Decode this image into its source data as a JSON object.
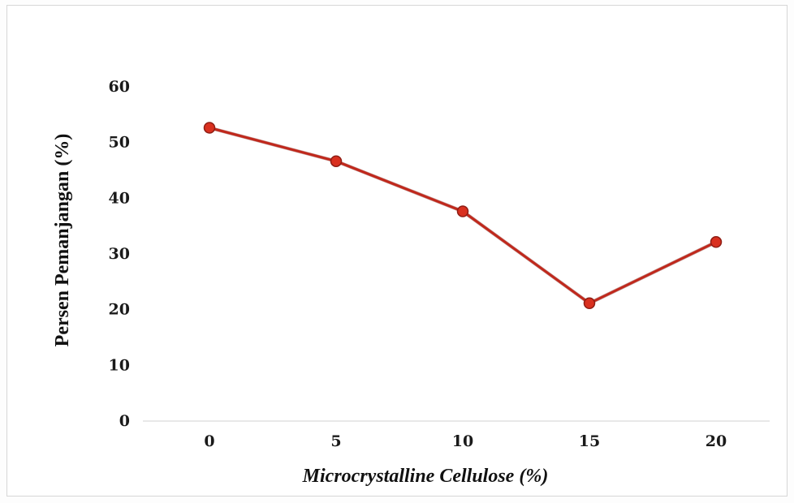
{
  "chart_data": {
    "type": "line",
    "title": "",
    "xlabel": "Microcrystalline Cellulose (%)",
    "ylabel": "Persen Pemanjangan (%)",
    "categories": [
      "0",
      "5",
      "10",
      "15",
      "20"
    ],
    "x": [
      0,
      5,
      10,
      15,
      20
    ],
    "series": [
      {
        "values": [
          52.5,
          46.5,
          37.5,
          21.0,
          32.0
        ],
        "color": "#c0281c"
      }
    ],
    "ylim": [
      0,
      60
    ],
    "yticks": [
      0,
      10,
      20,
      30,
      40,
      50,
      60
    ],
    "grid": false,
    "legend": "none"
  }
}
